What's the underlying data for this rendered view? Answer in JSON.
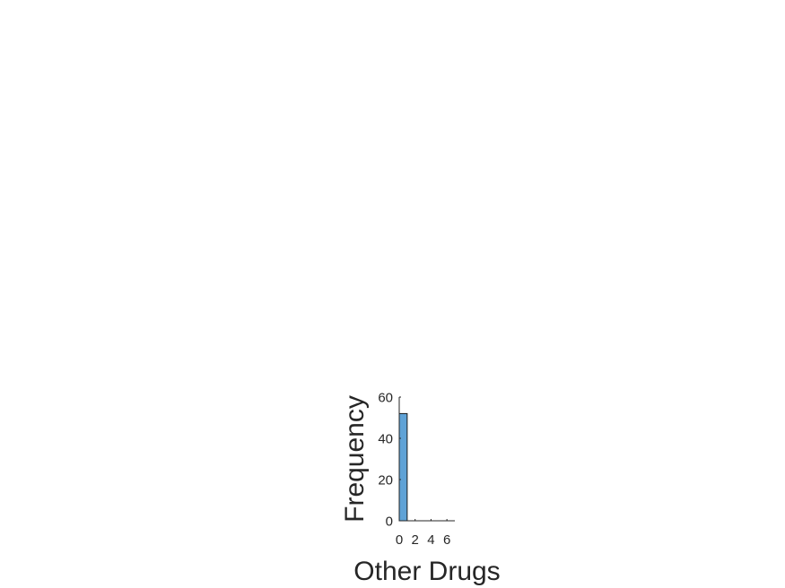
{
  "chart_data": {
    "type": "bar",
    "title": "",
    "xlabel": "Other Drugs",
    "ylabel": "Frequency",
    "bins": [
      {
        "start": 0,
        "end": 1,
        "value": 52
      },
      {
        "start": 1,
        "end": 2,
        "value": 0
      },
      {
        "start": 2,
        "end": 3,
        "value": 0
      },
      {
        "start": 3,
        "end": 4,
        "value": 0
      },
      {
        "start": 4,
        "end": 5,
        "value": 0
      },
      {
        "start": 5,
        "end": 6,
        "value": 0
      },
      {
        "start": 6,
        "end": 7,
        "value": 0
      }
    ],
    "xlim": [
      0,
      7
    ],
    "ylim": [
      0,
      60
    ],
    "xticks": [
      0,
      2,
      4,
      6
    ],
    "yticks": [
      0,
      20,
      40,
      60
    ],
    "xtick_labels": [
      "0",
      "2",
      "4",
      "6"
    ],
    "ytick_labels": [
      "0",
      "20",
      "40",
      "60"
    ],
    "grid": false,
    "legend": "none",
    "colors": {
      "bar_fill": "#5fa2d6",
      "bar_edge": "#1a1a1a",
      "axis": "#262626",
      "text": "#262626"
    }
  }
}
